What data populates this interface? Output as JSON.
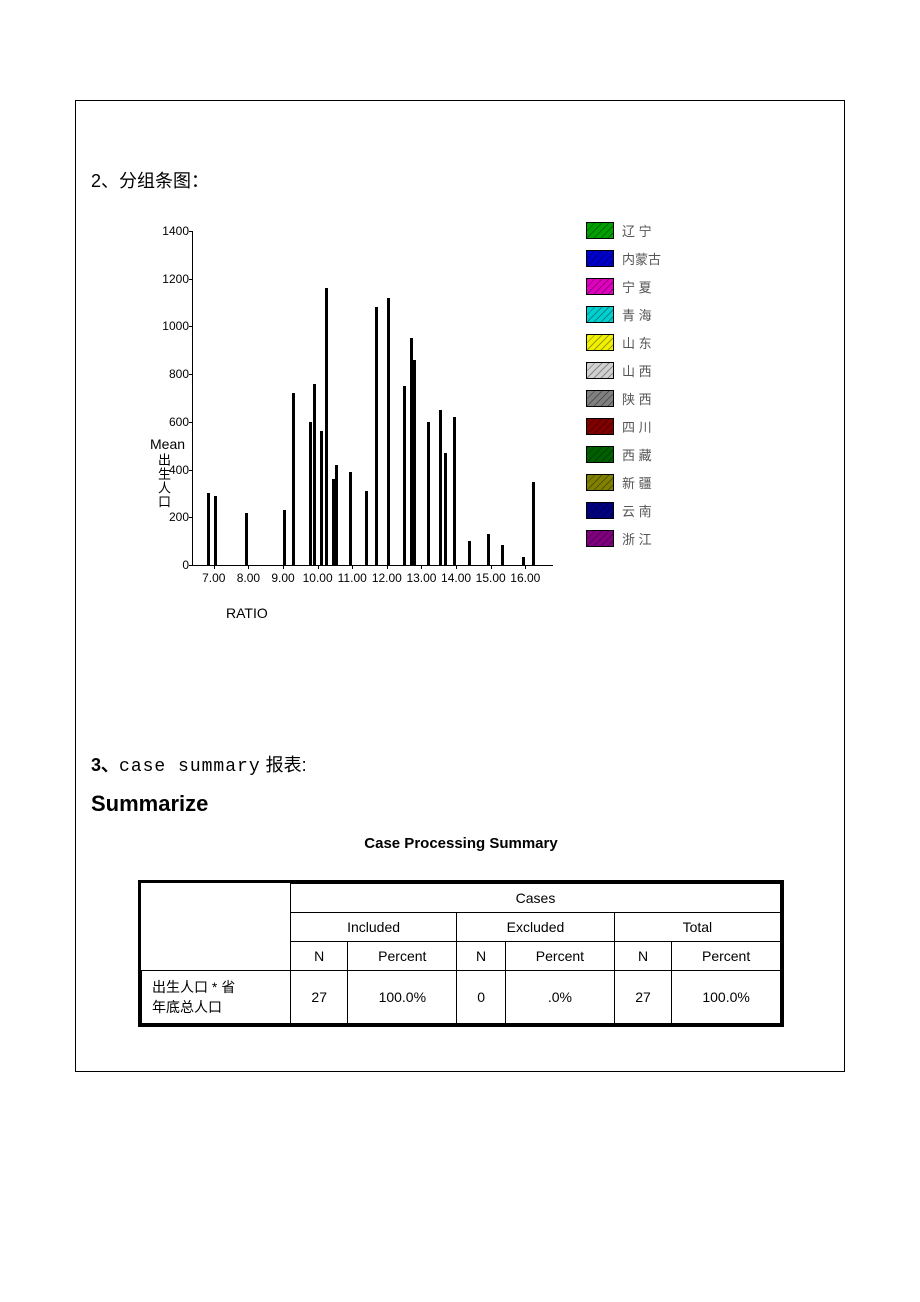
{
  "section2_title": "2、分组条图：",
  "section3_title_prefix": "3、",
  "section3_title_code": "case summary",
  "section3_title_suffix": "报表:",
  "summarize_heading": "Summarize",
  "chart": {
    "type": "bar",
    "ylabel_top": "Mean",
    "ylabel_cn": "出生人口",
    "xlabel": "RATIO",
    "ylim": [
      0,
      1400
    ],
    "ytick_step": 200,
    "xticks": [
      "7.00",
      "8.00",
      "9.00",
      "10.00",
      "11.00",
      "12.00",
      "13.00",
      "14.00",
      "15.00",
      "16.00"
    ],
    "xtick_values": [
      7,
      8,
      9,
      10,
      11,
      12,
      13,
      14,
      15,
      16
    ],
    "xlim": [
      6.4,
      16.8
    ],
    "bar_color": "#000000",
    "bars": [
      {
        "x": 6.85,
        "y": 300
      },
      {
        "x": 7.05,
        "y": 290
      },
      {
        "x": 7.95,
        "y": 220
      },
      {
        "x": 9.05,
        "y": 230
      },
      {
        "x": 9.3,
        "y": 720
      },
      {
        "x": 9.8,
        "y": 600
      },
      {
        "x": 9.9,
        "y": 760
      },
      {
        "x": 10.1,
        "y": 560
      },
      {
        "x": 10.25,
        "y": 1160
      },
      {
        "x": 10.45,
        "y": 360
      },
      {
        "x": 10.55,
        "y": 420
      },
      {
        "x": 10.95,
        "y": 390
      },
      {
        "x": 11.4,
        "y": 310
      },
      {
        "x": 11.7,
        "y": 1080
      },
      {
        "x": 12.05,
        "y": 1120
      },
      {
        "x": 12.5,
        "y": 750
      },
      {
        "x": 12.7,
        "y": 950
      },
      {
        "x": 12.8,
        "y": 860
      },
      {
        "x": 13.2,
        "y": 600
      },
      {
        "x": 13.55,
        "y": 650
      },
      {
        "x": 13.7,
        "y": 470
      },
      {
        "x": 13.95,
        "y": 620
      },
      {
        "x": 14.4,
        "y": 100
      },
      {
        "x": 14.95,
        "y": 130
      },
      {
        "x": 15.35,
        "y": 85
      },
      {
        "x": 15.95,
        "y": 35
      },
      {
        "x": 16.25,
        "y": 350
      }
    ],
    "legend": [
      {
        "label": "辽 宁",
        "color": "#00a000"
      },
      {
        "label": "内蒙古",
        "color": "#0000cc"
      },
      {
        "label": "宁 夏",
        "color": "#e000c0"
      },
      {
        "label": "青 海",
        "color": "#00d0d0"
      },
      {
        "label": "山 东",
        "color": "#f0f000"
      },
      {
        "label": "山 西",
        "color": "#d0d0d0"
      },
      {
        "label": "陕 西",
        "color": "#808080"
      },
      {
        "label": "四 川",
        "color": "#800000"
      },
      {
        "label": "西 藏",
        "color": "#006000"
      },
      {
        "label": "新 疆",
        "color": "#808000"
      },
      {
        "label": "云 南",
        "color": "#000080"
      },
      {
        "label": "浙 江",
        "color": "#800080"
      }
    ]
  },
  "table": {
    "title": "Case Processing Summary",
    "super_header": "Cases",
    "group_headers": [
      "Included",
      "Excluded",
      "Total"
    ],
    "sub_headers": [
      "N",
      "Percent",
      "N",
      "Percent",
      "N",
      "Percent"
    ],
    "row_label": "出生人口  * 省年底总人口",
    "row_label_line1": "出生人口  * 省",
    "row_label_line2": "年底总人口",
    "cells": [
      "27",
      "100.0%",
      "0",
      ".0%",
      "27",
      "100.0%"
    ]
  }
}
